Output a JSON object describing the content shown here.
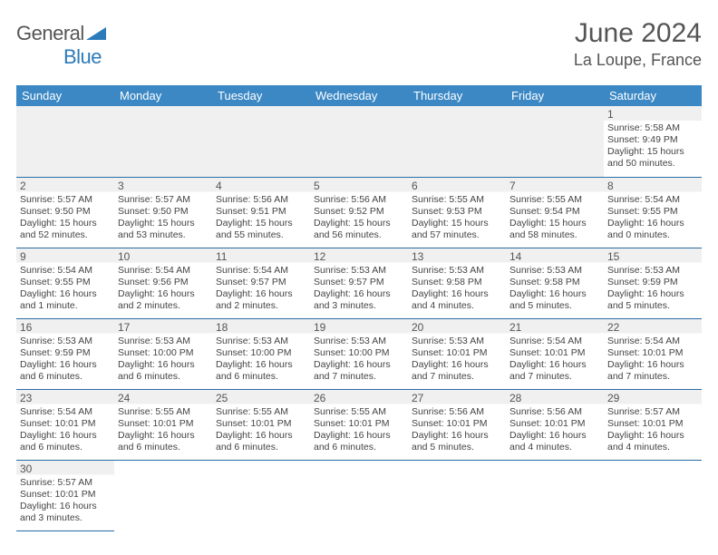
{
  "logo": {
    "general": "General",
    "blue": "Blue"
  },
  "title": "June 2024",
  "location": "La Loupe, France",
  "colors": {
    "header_bg": "#3b88c4",
    "border": "#2b6fa8",
    "shaded": "#f0f0f0",
    "text": "#444444",
    "title": "#555555"
  },
  "weekdays": [
    "Sunday",
    "Monday",
    "Tuesday",
    "Wednesday",
    "Thursday",
    "Friday",
    "Saturday"
  ],
  "weeks": [
    [
      null,
      null,
      null,
      null,
      null,
      null,
      {
        "n": "1",
        "sr": "5:58 AM",
        "ss": "9:49 PM",
        "dl": "15 hours and 50 minutes."
      }
    ],
    [
      {
        "n": "2",
        "sr": "5:57 AM",
        "ss": "9:50 PM",
        "dl": "15 hours and 52 minutes."
      },
      {
        "n": "3",
        "sr": "5:57 AM",
        "ss": "9:50 PM",
        "dl": "15 hours and 53 minutes."
      },
      {
        "n": "4",
        "sr": "5:56 AM",
        "ss": "9:51 PM",
        "dl": "15 hours and 55 minutes."
      },
      {
        "n": "5",
        "sr": "5:56 AM",
        "ss": "9:52 PM",
        "dl": "15 hours and 56 minutes."
      },
      {
        "n": "6",
        "sr": "5:55 AM",
        "ss": "9:53 PM",
        "dl": "15 hours and 57 minutes."
      },
      {
        "n": "7",
        "sr": "5:55 AM",
        "ss": "9:54 PM",
        "dl": "15 hours and 58 minutes."
      },
      {
        "n": "8",
        "sr": "5:54 AM",
        "ss": "9:55 PM",
        "dl": "16 hours and 0 minutes."
      }
    ],
    [
      {
        "n": "9",
        "sr": "5:54 AM",
        "ss": "9:55 PM",
        "dl": "16 hours and 1 minute."
      },
      {
        "n": "10",
        "sr": "5:54 AM",
        "ss": "9:56 PM",
        "dl": "16 hours and 2 minutes."
      },
      {
        "n": "11",
        "sr": "5:54 AM",
        "ss": "9:57 PM",
        "dl": "16 hours and 2 minutes."
      },
      {
        "n": "12",
        "sr": "5:53 AM",
        "ss": "9:57 PM",
        "dl": "16 hours and 3 minutes."
      },
      {
        "n": "13",
        "sr": "5:53 AM",
        "ss": "9:58 PM",
        "dl": "16 hours and 4 minutes."
      },
      {
        "n": "14",
        "sr": "5:53 AM",
        "ss": "9:58 PM",
        "dl": "16 hours and 5 minutes."
      },
      {
        "n": "15",
        "sr": "5:53 AM",
        "ss": "9:59 PM",
        "dl": "16 hours and 5 minutes."
      }
    ],
    [
      {
        "n": "16",
        "sr": "5:53 AM",
        "ss": "9:59 PM",
        "dl": "16 hours and 6 minutes."
      },
      {
        "n": "17",
        "sr": "5:53 AM",
        "ss": "10:00 PM",
        "dl": "16 hours and 6 minutes."
      },
      {
        "n": "18",
        "sr": "5:53 AM",
        "ss": "10:00 PM",
        "dl": "16 hours and 6 minutes."
      },
      {
        "n": "19",
        "sr": "5:53 AM",
        "ss": "10:00 PM",
        "dl": "16 hours and 7 minutes."
      },
      {
        "n": "20",
        "sr": "5:53 AM",
        "ss": "10:01 PM",
        "dl": "16 hours and 7 minutes."
      },
      {
        "n": "21",
        "sr": "5:54 AM",
        "ss": "10:01 PM",
        "dl": "16 hours and 7 minutes."
      },
      {
        "n": "22",
        "sr": "5:54 AM",
        "ss": "10:01 PM",
        "dl": "16 hours and 7 minutes."
      }
    ],
    [
      {
        "n": "23",
        "sr": "5:54 AM",
        "ss": "10:01 PM",
        "dl": "16 hours and 6 minutes."
      },
      {
        "n": "24",
        "sr": "5:55 AM",
        "ss": "10:01 PM",
        "dl": "16 hours and 6 minutes."
      },
      {
        "n": "25",
        "sr": "5:55 AM",
        "ss": "10:01 PM",
        "dl": "16 hours and 6 minutes."
      },
      {
        "n": "26",
        "sr": "5:55 AM",
        "ss": "10:01 PM",
        "dl": "16 hours and 6 minutes."
      },
      {
        "n": "27",
        "sr": "5:56 AM",
        "ss": "10:01 PM",
        "dl": "16 hours and 5 minutes."
      },
      {
        "n": "28",
        "sr": "5:56 AM",
        "ss": "10:01 PM",
        "dl": "16 hours and 4 minutes."
      },
      {
        "n": "29",
        "sr": "5:57 AM",
        "ss": "10:01 PM",
        "dl": "16 hours and 4 minutes."
      }
    ],
    [
      {
        "n": "30",
        "sr": "5:57 AM",
        "ss": "10:01 PM",
        "dl": "16 hours and 3 minutes."
      },
      null,
      null,
      null,
      null,
      null,
      null
    ]
  ],
  "labels": {
    "sunrise": "Sunrise:",
    "sunset": "Sunset:",
    "daylight": "Daylight:"
  }
}
